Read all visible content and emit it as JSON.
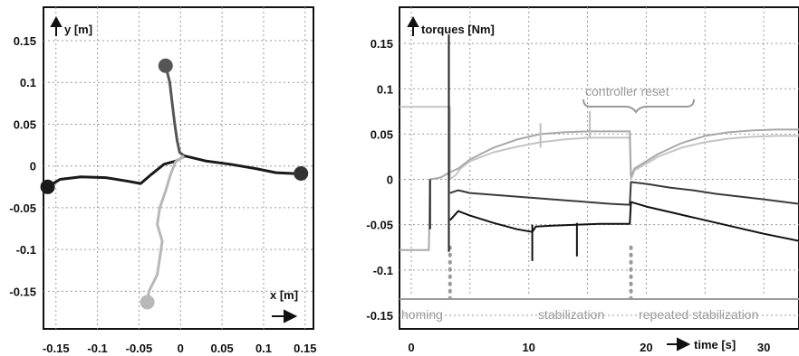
{
  "chart_data": [
    {
      "type": "line",
      "title": "",
      "xlabel": "x [m]",
      "ylabel": "y [m]",
      "xlim": [
        -0.165,
        0.16
      ],
      "ylim": [
        -0.195,
        0.19
      ],
      "grid": true,
      "x_ticks": [
        "-0.15",
        "-0.1",
        "-0.05",
        "0",
        "0.05",
        "0.1",
        "0.15"
      ],
      "y_ticks": [
        "0.15",
        "0.1",
        "0.05",
        "0",
        "-0.05",
        "-0.1",
        "-0.15"
      ],
      "series": [
        {
          "color": "#1a1a1a",
          "points": [
            [
              -0.16,
              -0.025
            ],
            [
              -0.145,
              -0.016
            ],
            [
              -0.12,
              -0.013
            ],
            [
              -0.09,
              -0.014
            ],
            [
              -0.065,
              -0.018
            ],
            [
              -0.048,
              -0.021
            ],
            [
              -0.035,
              -0.01
            ],
            [
              -0.02,
              0.002
            ],
            [
              -0.005,
              0.006
            ],
            [
              0.005,
              0.012
            ],
            [
              0.03,
              0.006
            ],
            [
              0.06,
              0.002
            ],
            [
              0.09,
              -0.003
            ],
            [
              0.115,
              -0.008
            ],
            [
              0.135,
              -0.009
            ],
            [
              0.145,
              -0.009
            ]
          ],
          "end_marker": [
            -0.16,
            -0.025
          ],
          "start_marker": [
            0.145,
            -0.009
          ]
        },
        {
          "color": "#555555",
          "points": [
            [
              -0.018,
              0.12
            ],
            [
              -0.013,
              0.1
            ],
            [
              -0.01,
              0.075
            ],
            [
              -0.007,
              0.05
            ],
            [
              -0.004,
              0.03
            ],
            [
              -0.001,
              0.016
            ],
            [
              0.005,
              0.012
            ]
          ],
          "end_marker": [
            -0.018,
            0.12
          ]
        },
        {
          "color": "#b8b8b8",
          "points": [
            [
              -0.04,
              -0.163
            ],
            [
              -0.038,
              -0.15
            ],
            [
              -0.028,
              -0.13
            ],
            [
              -0.025,
              -0.11
            ],
            [
              -0.022,
              -0.09
            ],
            [
              -0.028,
              -0.07
            ],
            [
              -0.025,
              -0.05
            ],
            [
              -0.018,
              -0.03
            ],
            [
              -0.012,
              -0.01
            ],
            [
              -0.006,
              0.005
            ],
            [
              0.004,
              0.012
            ]
          ],
          "end_marker": [
            -0.04,
            -0.163
          ]
        }
      ]
    },
    {
      "type": "line",
      "title": "",
      "xlabel": "time [s]",
      "ylabel": "torques [Nm]",
      "xlim": [
        -1,
        33
      ],
      "ylim": [
        -0.165,
        0.19
      ],
      "grid": true,
      "x_ticks": [
        "0",
        "10",
        "20",
        "30"
      ],
      "y_ticks": [
        "0.15",
        "0.1",
        "0.05",
        "0",
        "-0.05",
        "-0.1",
        "-0.15"
      ],
      "annotations": [
        "controller reset",
        "homing",
        "stabilization",
        "repeated stabilization"
      ],
      "phase_markers_s": [
        3.3,
        18.7
      ],
      "series": [
        {
          "color": "#c4c4c4",
          "points": [
            [
              -1,
              0.08
            ],
            [
              3.3,
              0.08
            ],
            [
              3.3,
              0.0
            ],
            [
              3.8,
              0.005
            ],
            [
              4.2,
              0.012
            ],
            [
              5,
              0.02
            ],
            [
              7,
              0.03
            ],
            [
              9,
              0.036
            ],
            [
              11,
              0.041
            ],
            [
              13,
              0.044
            ],
            [
              15,
              0.046
            ],
            [
              17,
              0.046
            ],
            [
              18.6,
              0.046
            ],
            [
              18.7,
              0.0
            ],
            [
              19,
              0.01
            ],
            [
              21,
              0.025
            ],
            [
              23,
              0.035
            ],
            [
              25,
              0.041
            ],
            [
              27,
              0.045
            ],
            [
              29,
              0.047
            ],
            [
              31,
              0.048
            ],
            [
              33,
              0.048
            ]
          ]
        },
        {
          "color": "#a8a8a8",
          "points": [
            [
              -1,
              -0.078
            ],
            [
              1.5,
              -0.078
            ],
            [
              1.6,
              0.0
            ],
            [
              2.5,
              0.002
            ],
            [
              3.3,
              0.008
            ],
            [
              4,
              0.012
            ],
            [
              5,
              0.022
            ],
            [
              7,
              0.035
            ],
            [
              9,
              0.044
            ],
            [
              11,
              0.05
            ],
            [
              13,
              0.052
            ],
            [
              15,
              0.053
            ],
            [
              17,
              0.053
            ],
            [
              18.6,
              0.053
            ],
            [
              18.7,
              0.003
            ],
            [
              19,
              0.012
            ],
            [
              21,
              0.028
            ],
            [
              23,
              0.04
            ],
            [
              25,
              0.048
            ],
            [
              27,
              0.052
            ],
            [
              29,
              0.054
            ],
            [
              31,
              0.055
            ],
            [
              33,
              0.055
            ]
          ]
        },
        {
          "color": "#3a3a3a",
          "points": [
            [
              3.3,
              -0.015
            ],
            [
              4,
              -0.012
            ],
            [
              5,
              -0.015
            ],
            [
              7,
              -0.017
            ],
            [
              9,
              -0.019
            ],
            [
              11,
              -0.021
            ],
            [
              13,
              -0.023
            ],
            [
              15,
              -0.025
            ],
            [
              17,
              -0.027
            ],
            [
              18.6,
              -0.028
            ],
            [
              18.7,
              -0.003
            ],
            [
              20,
              -0.005
            ],
            [
              22,
              -0.009
            ],
            [
              24,
              -0.012
            ],
            [
              26,
              -0.016
            ],
            [
              28,
              -0.019
            ],
            [
              30,
              -0.022
            ],
            [
              33,
              -0.027
            ]
          ]
        },
        {
          "color": "#111111",
          "points": [
            [
              3.3,
              -0.045
            ],
            [
              4,
              -0.035
            ],
            [
              5,
              -0.04
            ],
            [
              7,
              -0.048
            ],
            [
              9,
              -0.055
            ],
            [
              10.3,
              -0.058
            ],
            [
              10.6,
              -0.052
            ],
            [
              12,
              -0.051
            ],
            [
              14,
              -0.05
            ],
            [
              16,
              -0.049
            ],
            [
              18.6,
              -0.049
            ],
            [
              18.7,
              -0.025
            ],
            [
              20,
              -0.03
            ],
            [
              22,
              -0.036
            ],
            [
              24,
              -0.042
            ],
            [
              26,
              -0.048
            ],
            [
              28,
              -0.054
            ],
            [
              30,
              -0.06
            ],
            [
              33,
              -0.068
            ]
          ]
        }
      ]
    }
  ]
}
